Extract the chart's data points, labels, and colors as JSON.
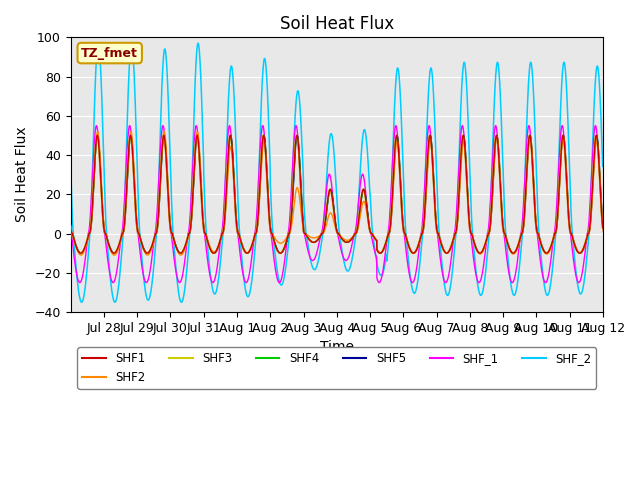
{
  "title": "Soil Heat Flux",
  "xlabel": "Time",
  "ylabel": "Soil Heat Flux",
  "ylim": [
    -40,
    100
  ],
  "xtick_labels": [
    "Jul 28",
    "Jul 29",
    "Jul 30",
    "Jul 31",
    "Aug 1",
    "Aug 2",
    "Aug 3",
    "Aug 4",
    "Aug 5",
    "Aug 6",
    "Aug 7",
    "Aug 8",
    "Aug 9",
    "Aug 10",
    "Aug 11",
    "Aug 12"
  ],
  "legend_box_text": "TZ_fmet",
  "background_color": "#e8e8e8",
  "series": [
    {
      "name": "SHF1",
      "color": "#cc0000"
    },
    {
      "name": "SHF2",
      "color": "#ff8800"
    },
    {
      "name": "SHF3",
      "color": "#cccc00"
    },
    {
      "name": "SHF4",
      "color": "#00cc00"
    },
    {
      "name": "SHF5",
      "color": "#000099"
    },
    {
      "name": "SHF_1",
      "color": "#ff00ff"
    },
    {
      "name": "SHF_2",
      "color": "#00ccff"
    }
  ]
}
